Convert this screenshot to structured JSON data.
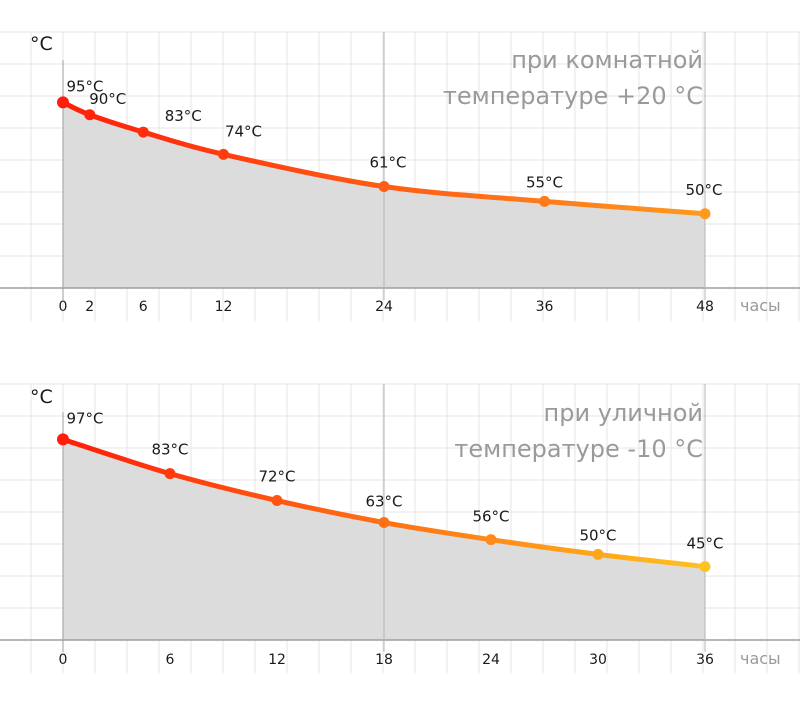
{
  "chart_data": [
    {
      "type": "area",
      "title": "при комнатной",
      "title_line2": "температуре +20 °C",
      "ylabel": "°C",
      "xlabel": "часы",
      "xlim": [
        0,
        48
      ],
      "ylim": [
        20,
        100
      ],
      "xticks": [
        0,
        2,
        6,
        12,
        24,
        36,
        48
      ],
      "x": [
        0,
        2,
        6,
        12,
        24,
        36,
        48
      ],
      "values": [
        95,
        90,
        83,
        74,
        61,
        55,
        50
      ],
      "labels": [
        "95°C",
        "90°C",
        "83°C",
        "74°C",
        "61°C",
        "55°C",
        "50°C"
      ],
      "grid": true,
      "colors": {
        "start": "#ff1e0a",
        "end": "#ff9a1f"
      }
    },
    {
      "type": "area",
      "title": "при уличной",
      "title_line2": "температуре -10 °C",
      "ylabel": "°C",
      "xlabel": "часы",
      "xlim": [
        0,
        36
      ],
      "ylim": [
        15,
        100
      ],
      "xticks": [
        0,
        6,
        12,
        18,
        24,
        30,
        36
      ],
      "x": [
        0,
        6,
        12,
        18,
        24,
        30,
        36
      ],
      "values": [
        97,
        83,
        72,
        63,
        56,
        50,
        45
      ],
      "labels": [
        "97°C",
        "83°C",
        "72°C",
        "63°C",
        "56°C",
        "50°C",
        "45°C"
      ],
      "grid": true,
      "colors": {
        "start": "#ff1e0a",
        "end": "#ffc21f"
      }
    }
  ],
  "style": {
    "area_fill": "#dcdcdc",
    "grid_color": "#e6e6e6",
    "axis_color": "#9e9e9e"
  }
}
